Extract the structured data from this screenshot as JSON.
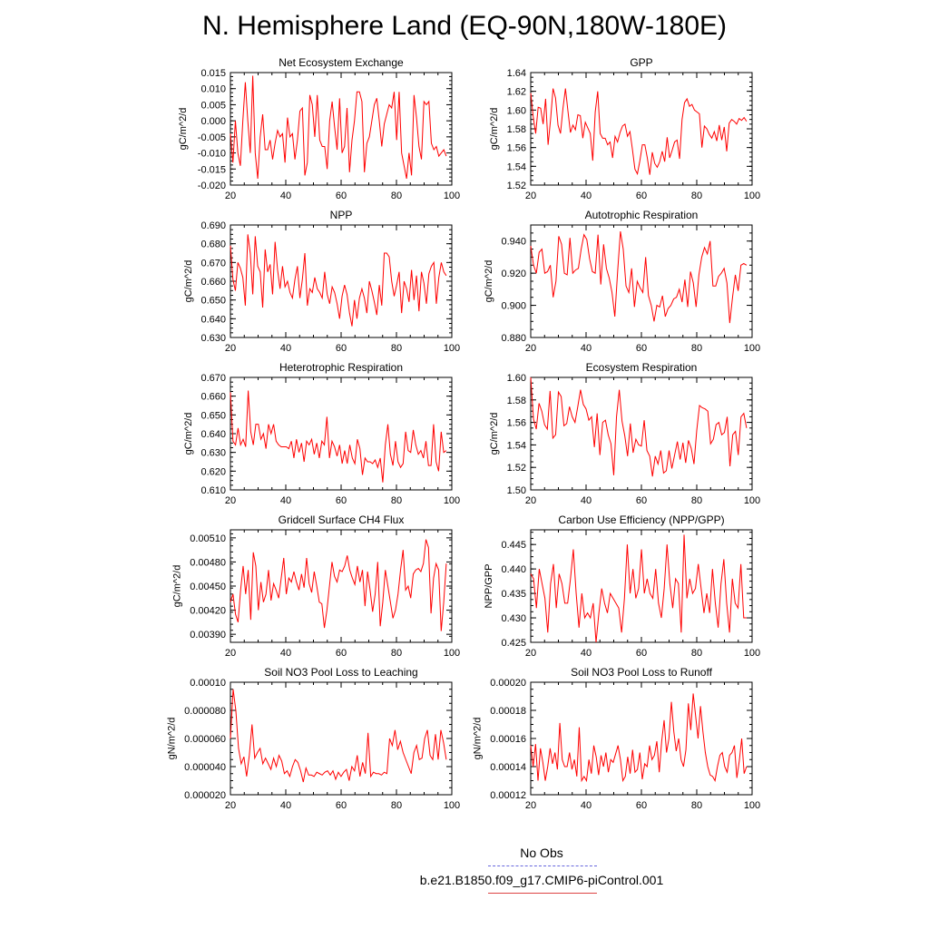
{
  "title": "N. Hemisphere Land (EQ-90N,180W-180E)",
  "legend": {
    "obs_label": "No Obs",
    "obs_color": "#6666dd",
    "model_label": "b.e21.B1850.f09_g17.CMIP6-piControl.001",
    "model_color": "#dd4444"
  },
  "line_color": "#ff0000",
  "chart_data": [
    {
      "type": "line",
      "title": "Net Ecosystem Exchange",
      "ylabel": "gC/m^2/d",
      "xlim": [
        20,
        100
      ],
      "ylim": [
        -0.02,
        0.015
      ],
      "xticks": [
        20,
        40,
        60,
        80,
        100
      ],
      "yticks": [
        "-0.020",
        "-0.015",
        "-0.010",
        "-0.005",
        "0.000",
        "0.005",
        "0.010",
        "0.015"
      ],
      "x_start": 20,
      "values": [
        -0.004,
        -0.013,
        0.0,
        -0.01,
        -0.014,
        0.0,
        0.012,
        0.0,
        -0.01,
        0.014,
        -0.01,
        -0.018,
        -0.005,
        0.002,
        -0.009,
        -0.009,
        -0.006,
        -0.012,
        -0.007,
        -0.003,
        -0.005,
        -0.004,
        -0.013,
        0.001,
        -0.005,
        -0.004,
        -0.012,
        -0.006,
        0.003,
        0.004,
        -0.017,
        -0.013,
        0.008,
        0.005,
        -0.005,
        0.008,
        -0.006,
        -0.008,
        -0.008,
        -0.015,
        0.0,
        0.006,
        -0.002,
        -0.009,
        0.007,
        -0.01,
        -0.008,
        0.004,
        -0.016,
        -0.006,
        0.0,
        0.009,
        0.009,
        0.006,
        -0.016,
        -0.007,
        -0.005,
        0.0,
        0.005,
        0.007,
        0.0,
        -0.008,
        -0.001,
        0.002,
        0.005,
        0.004,
        0.009,
        -0.006,
        0.009,
        -0.01,
        -0.014,
        -0.018,
        -0.01,
        -0.017,
        0.008,
        0.001,
        -0.008,
        -0.012,
        0.006,
        0.005,
        0.006,
        -0.007,
        -0.009,
        -0.008,
        -0.011,
        -0.01,
        -0.009,
        -0.011
      ]
    },
    {
      "type": "line",
      "title": "GPP",
      "ylabel": "gC/m^2/d",
      "xlim": [
        20,
        100
      ],
      "ylim": [
        1.52,
        1.64
      ],
      "xticks": [
        20,
        40,
        60,
        80,
        100
      ],
      "yticks": [
        "1.52",
        "1.54",
        "1.56",
        "1.58",
        "1.60",
        "1.62",
        "1.64"
      ],
      "x_start": 20,
      "values": [
        1.618,
        1.593,
        1.575,
        1.603,
        1.602,
        1.585,
        1.612,
        1.563,
        1.59,
        1.623,
        1.613,
        1.584,
        1.575,
        1.602,
        1.623,
        1.599,
        1.576,
        1.584,
        1.579,
        1.595,
        1.594,
        1.57,
        1.587,
        1.581,
        1.575,
        1.546,
        1.598,
        1.62,
        1.575,
        1.57,
        1.57,
        1.563,
        1.566,
        1.549,
        1.572,
        1.566,
        1.576,
        1.583,
        1.585,
        1.572,
        1.577,
        1.558,
        1.537,
        1.532,
        1.546,
        1.563,
        1.563,
        1.549,
        1.531,
        1.555,
        1.543,
        1.539,
        1.545,
        1.556,
        1.545,
        1.571,
        1.549,
        1.557,
        1.566,
        1.568,
        1.548,
        1.59,
        1.608,
        1.612,
        1.604,
        1.606,
        1.6,
        1.598,
        1.596,
        1.56,
        1.583,
        1.58,
        1.574,
        1.57,
        1.577,
        1.567,
        1.584,
        1.568,
        1.582,
        1.556,
        1.586,
        1.59,
        1.588,
        1.585,
        1.591,
        1.589,
        1.592,
        1.588
      ]
    },
    {
      "type": "line",
      "title": "NPP",
      "ylabel": "gC/m^2/d",
      "xlim": [
        20,
        100
      ],
      "ylim": [
        0.63,
        0.69
      ],
      "xticks": [
        20,
        40,
        60,
        80,
        100
      ],
      "yticks": [
        "0.630",
        "0.640",
        "0.650",
        "0.660",
        "0.670",
        "0.680",
        "0.690"
      ],
      "x_start": 20,
      "values": [
        0.679,
        0.661,
        0.655,
        0.67,
        0.667,
        0.662,
        0.647,
        0.685,
        0.675,
        0.653,
        0.684,
        0.668,
        0.665,
        0.646,
        0.677,
        0.665,
        0.669,
        0.653,
        0.681,
        0.666,
        0.656,
        0.668,
        0.657,
        0.66,
        0.654,
        0.651,
        0.661,
        0.668,
        0.651,
        0.661,
        0.675,
        0.647,
        0.656,
        0.654,
        0.662,
        0.656,
        0.654,
        0.651,
        0.665,
        0.653,
        0.648,
        0.657,
        0.654,
        0.648,
        0.64,
        0.652,
        0.658,
        0.653,
        0.643,
        0.636,
        0.65,
        0.64,
        0.651,
        0.656,
        0.651,
        0.643,
        0.66,
        0.655,
        0.649,
        0.642,
        0.658,
        0.647,
        0.675,
        0.675,
        0.673,
        0.66,
        0.652,
        0.658,
        0.665,
        0.643,
        0.66,
        0.656,
        0.649,
        0.666,
        0.65,
        0.663,
        0.644,
        0.665,
        0.659,
        0.648,
        0.664,
        0.668,
        0.67,
        0.648,
        0.662,
        0.67,
        0.665,
        0.663
      ]
    },
    {
      "type": "line",
      "title": "Autotrophic Respiration",
      "ylabel": "gC/m^2/d",
      "xlim": [
        20,
        100
      ],
      "ylim": [
        0.88,
        0.95
      ],
      "xticks": [
        20,
        40,
        60,
        80,
        100
      ],
      "yticks": [
        "0.880",
        "0.900",
        "0.920",
        "0.940"
      ],
      "x_start": 20,
      "values": [
        0.937,
        0.925,
        0.92,
        0.933,
        0.935,
        0.92,
        0.921,
        0.925,
        0.905,
        0.915,
        0.943,
        0.938,
        0.92,
        0.919,
        0.942,
        0.92,
        0.922,
        0.923,
        0.935,
        0.944,
        0.941,
        0.929,
        0.921,
        0.92,
        0.944,
        0.913,
        0.938,
        0.923,
        0.917,
        0.908,
        0.893,
        0.921,
        0.946,
        0.935,
        0.912,
        0.908,
        0.923,
        0.899,
        0.915,
        0.911,
        0.908,
        0.93,
        0.906,
        0.9,
        0.89,
        0.9,
        0.899,
        0.906,
        0.893,
        0.898,
        0.9,
        0.904,
        0.905,
        0.91,
        0.902,
        0.916,
        0.899,
        0.921,
        0.914,
        0.899,
        0.919,
        0.93,
        0.936,
        0.932,
        0.94,
        0.912,
        0.912,
        0.918,
        0.92,
        0.923,
        0.914,
        0.889,
        0.905,
        0.919,
        0.909,
        0.925,
        0.926,
        0.925
      ]
    },
    {
      "type": "line",
      "title": "Heterotrophic Respiration",
      "ylabel": "gC/m^2/d",
      "xlim": [
        20,
        100
      ],
      "ylim": [
        0.61,
        0.67
      ],
      "xticks": [
        20,
        40,
        60,
        80,
        100
      ],
      "yticks": [
        "0.610",
        "0.620",
        "0.630",
        "0.640",
        "0.650",
        "0.660",
        "0.670"
      ],
      "x_start": 20,
      "values": [
        0.662,
        0.636,
        0.634,
        0.643,
        0.634,
        0.637,
        0.633,
        0.663,
        0.641,
        0.634,
        0.645,
        0.645,
        0.637,
        0.64,
        0.632,
        0.645,
        0.64,
        0.645,
        0.636,
        0.634,
        0.633,
        0.633,
        0.633,
        0.632,
        0.636,
        0.627,
        0.637,
        0.63,
        0.635,
        0.625,
        0.636,
        0.634,
        0.637,
        0.629,
        0.635,
        0.627,
        0.636,
        0.634,
        0.649,
        0.627,
        0.636,
        0.633,
        0.628,
        0.634,
        0.624,
        0.631,
        0.624,
        0.634,
        0.627,
        0.624,
        0.637,
        0.632,
        0.618,
        0.627,
        0.625,
        0.625,
        0.624,
        0.626,
        0.622,
        0.627,
        0.614,
        0.634,
        0.645,
        0.629,
        0.623,
        0.636,
        0.625,
        0.622,
        0.624,
        0.641,
        0.631,
        0.63,
        0.642,
        0.634,
        0.629,
        0.631,
        0.627,
        0.636,
        0.623,
        0.623,
        0.645,
        0.625,
        0.62,
        0.641,
        0.63,
        0.631
      ]
    },
    {
      "type": "line",
      "title": "Ecosystem Respiration",
      "ylabel": "gC/m^2/d",
      "xlim": [
        20,
        100
      ],
      "ylim": [
        1.5,
        1.6
      ],
      "xticks": [
        20,
        40,
        60,
        80,
        100
      ],
      "yticks": [
        "1.50",
        "1.52",
        "1.54",
        "1.56",
        "1.58",
        "1.60"
      ],
      "x_start": 20,
      "values": [
        1.6,
        1.563,
        1.554,
        1.577,
        1.57,
        1.558,
        1.554,
        1.588,
        1.546,
        1.549,
        1.587,
        1.583,
        1.557,
        1.559,
        1.574,
        1.565,
        1.56,
        1.574,
        1.589,
        1.576,
        1.572,
        1.562,
        1.565,
        1.538,
        1.568,
        1.531,
        1.56,
        1.562,
        1.549,
        1.541,
        1.513,
        1.565,
        1.589,
        1.561,
        1.548,
        1.53,
        1.559,
        1.533,
        1.545,
        1.54,
        1.539,
        1.562,
        1.535,
        1.53,
        1.512,
        1.53,
        1.523,
        1.535,
        1.515,
        1.517,
        1.535,
        1.519,
        1.531,
        1.543,
        1.527,
        1.542,
        1.524,
        1.544,
        1.537,
        1.523,
        1.553,
        1.575,
        1.573,
        1.572,
        1.57,
        1.541,
        1.545,
        1.558,
        1.56,
        1.549,
        1.551,
        1.565,
        1.521,
        1.549,
        1.552,
        1.531,
        1.565,
        1.568,
        1.555
      ]
    },
    {
      "type": "line",
      "title": "Gridcell Surface CH4 Flux",
      "ylabel": "gC/m^2/d",
      "xlim": [
        20,
        100
      ],
      "ylim": [
        0.0038,
        0.0052
      ],
      "xticks": [
        20,
        40,
        60,
        80,
        100
      ],
      "yticks": [
        "0.00390",
        "0.00420",
        "0.00450",
        "0.00480",
        "0.00510"
      ],
      "x_start": 20,
      "values": [
        0.0043,
        0.0044,
        0.00415,
        0.00405,
        0.00445,
        0.00475,
        0.0044,
        0.0047,
        0.00408,
        0.00492,
        0.00475,
        0.0042,
        0.00455,
        0.0043,
        0.0044,
        0.0047,
        0.00432,
        0.00453,
        0.00445,
        0.00435,
        0.0046,
        0.00485,
        0.0044,
        0.0046,
        0.00455,
        0.00468,
        0.00455,
        0.00445,
        0.00465,
        0.00448,
        0.00485,
        0.00453,
        0.00442,
        0.00468,
        0.0045,
        0.0043,
        0.00428,
        0.00398,
        0.0042,
        0.0045,
        0.0048,
        0.00462,
        0.00455,
        0.0047,
        0.00468,
        0.00475,
        0.00488,
        0.0047,
        0.0046,
        0.00452,
        0.00475,
        0.00455,
        0.0047,
        0.00425,
        0.00468,
        0.00445,
        0.00418,
        0.0044,
        0.0048,
        0.004,
        0.0043,
        0.0047,
        0.0045,
        0.0043,
        0.0041,
        0.0042,
        0.0044,
        0.0047,
        0.00495,
        0.00445,
        0.0045,
        0.00435,
        0.00465,
        0.0047,
        0.00472,
        0.00468,
        0.00478,
        0.00508,
        0.00498,
        0.00416,
        0.0046,
        0.00478,
        0.0047,
        0.00394,
        0.0043,
        0.00478
      ]
    },
    {
      "type": "line",
      "title": "Carbon Use Efficiency (NPP/GPP)",
      "ylabel": "NPP/GPP",
      "xlim": [
        20,
        100
      ],
      "ylim": [
        0.425,
        0.448
      ],
      "xticks": [
        20,
        40,
        60,
        80,
        100
      ],
      "yticks": [
        "0.425",
        "0.430",
        "0.435",
        "0.440",
        "0.445"
      ],
      "x_start": 20,
      "values": [
        0.439,
        0.438,
        0.432,
        0.44,
        0.437,
        0.434,
        0.427,
        0.437,
        0.441,
        0.432,
        0.439,
        0.437,
        0.433,
        0.433,
        0.438,
        0.444,
        0.435,
        0.428,
        0.435,
        0.43,
        0.431,
        0.43,
        0.433,
        0.425,
        0.431,
        0.436,
        0.433,
        0.431,
        0.435,
        0.434,
        0.433,
        0.432,
        0.427,
        0.434,
        0.445,
        0.435,
        0.44,
        0.434,
        0.436,
        0.444,
        0.435,
        0.438,
        0.435,
        0.434,
        0.44,
        0.433,
        0.43,
        0.436,
        0.445,
        0.437,
        0.432,
        0.438,
        0.437,
        0.427,
        0.447,
        0.434,
        0.438,
        0.435,
        0.436,
        0.441,
        0.436,
        0.431,
        0.435,
        0.431,
        0.44,
        0.433,
        0.428,
        0.437,
        0.442,
        0.433,
        0.427,
        0.438,
        0.433,
        0.432,
        0.441,
        0.43,
        0.43
      ]
    },
    {
      "type": "line",
      "title": "Soil NO3 Pool Loss to Leaching",
      "ylabel": "gN/m^2/d",
      "xlim": [
        20,
        100
      ],
      "ylim": [
        2e-05,
        0.0001
      ],
      "xticks": [
        20,
        40,
        60,
        80,
        100
      ],
      "yticks": [
        "0.000020",
        "0.000040",
        "0.000060",
        "0.000080",
        "0.00010"
      ],
      "x_start": 20,
      "values": [
        6e-05,
        9.5e-05,
        8e-05,
        5.3e-05,
        4.2e-05,
        4.7e-05,
        3.3e-05,
        4.8e-05,
        7e-05,
        4.6e-05,
        5e-05,
        5.3e-05,
        4.2e-05,
        4.6e-05,
        4.2e-05,
        3.8e-05,
        4.6e-05,
        4e-05,
        4.8e-05,
        4.4e-05,
        3.5e-05,
        3.7e-05,
        3.3e-05,
        4e-05,
        4.5e-05,
        4.3e-05,
        3.7e-05,
        2.9e-05,
        3.9e-05,
        3.4e-05,
        3.4e-05,
        3.3e-05,
        3.6e-05,
        3.5e-05,
        3.4e-05,
        3.6e-05,
        3.7e-05,
        3.4e-05,
        3.7e-05,
        3.1e-05,
        3.6e-05,
        3.3e-05,
        3.6e-05,
        3.8e-05,
        3e-05,
        4e-05,
        3.7e-05,
        4.8e-05,
        3.3e-05,
        4.3e-05,
        3.5e-05,
        6.4e-05,
        3.3e-05,
        3.6e-05,
        3.5e-05,
        3.5e-05,
        3.4e-05,
        3.6e-05,
        3.5e-05,
        6e-05,
        5.5e-05,
        6.6e-05,
        5.2e-05,
        5.8e-05,
        5e-05,
        4.5e-05,
        4e-05,
        3.5e-05,
        5e-05,
        5.5e-05,
        4.5e-05,
        4.6e-05,
        6e-05,
        6.6e-05,
        4.8e-05,
        4.5e-05,
        6.3e-05,
        4.5e-05,
        6.6e-05,
        5.7e-05,
        4.5e-05
      ]
    },
    {
      "type": "line",
      "title": "Soil NO3 Pool Loss to Runoff",
      "ylabel": "gN/m^2/d",
      "xlim": [
        20,
        100
      ],
      "ylim": [
        0.00012,
        0.0002
      ],
      "xticks": [
        20,
        40,
        60,
        80,
        100
      ],
      "yticks": [
        "0.00012",
        "0.00014",
        "0.00016",
        "0.00018",
        "0.00020"
      ],
      "x_start": 20,
      "values": [
        0.000155,
        0.00014,
        0.000156,
        0.00013,
        0.000153,
        0.000143,
        0.00013,
        0.00014,
        0.000153,
        0.000142,
        0.00015,
        0.000138,
        0.000171,
        0.000145,
        0.00014,
        0.00014,
        0.00015,
        0.000138,
        0.000145,
        0.000133,
        0.000168,
        0.00013,
        0.000133,
        0.00013,
        0.000145,
        0.000135,
        0.000155,
        0.000147,
        0.000134,
        0.000148,
        0.00014,
        0.00015,
        0.000136,
        0.000145,
        0.000143,
        0.000149,
        0.000155,
        0.000145,
        0.00013,
        0.000133,
        0.000147,
        0.000135,
        0.000152,
        0.000136,
        0.000138,
        0.00015,
        0.000131,
        0.000142,
        0.00014,
        0.000155,
        0.000145,
        0.000148,
        0.000158,
        0.000136,
        0.000158,
        0.000173,
        0.00015,
        0.00016,
        0.000186,
        0.000165,
        0.000151,
        0.00016,
        0.000145,
        0.00014,
        0.000152,
        0.000185,
        0.000166,
        0.000192,
        0.000176,
        0.00016,
        0.000183,
        0.000165,
        0.00015,
        0.00014,
        0.000134,
        0.000133,
        0.00013,
        0.00014,
        0.000148,
        0.00015,
        0.00014,
        0.000136,
        0.000148,
        0.00015,
        0.000155,
        0.000132,
        0.000144,
        0.00016,
        0.000135,
        0.00014
      ]
    }
  ]
}
